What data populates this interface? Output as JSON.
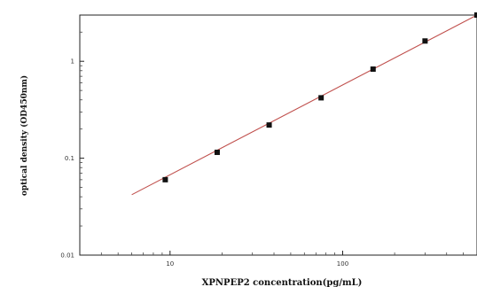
{
  "chart_data": {
    "type": "scatter",
    "xlabel": "XPNPEP2  concentration(pg/mL)",
    "ylabel": "optical density (OD450nm)",
    "x_scale": "log",
    "y_scale": "log",
    "xlim": [
      3,
      600
    ],
    "ylim": [
      0.01,
      3
    ],
    "x_ticks": [
      {
        "value": 10,
        "label": "10"
      },
      {
        "value": 100,
        "label": "100"
      }
    ],
    "y_ticks": [
      {
        "value": 0.01,
        "label": "0.01"
      },
      {
        "value": 0.1,
        "label": "0.1"
      },
      {
        "value": 1,
        "label": "1"
      }
    ],
    "grid": false,
    "series": [
      {
        "x": [
          9.38,
          18.75,
          37.5,
          75,
          150,
          300,
          600
        ],
        "y": [
          0.06,
          0.115,
          0.22,
          0.42,
          0.83,
          1.62,
          3.0
        ],
        "marker": "square",
        "color": "#111111"
      }
    ],
    "fit_line": {
      "x": [
        6,
        600
      ],
      "y": [
        0.042,
        3.0
      ],
      "color": "#c0504d"
    }
  }
}
